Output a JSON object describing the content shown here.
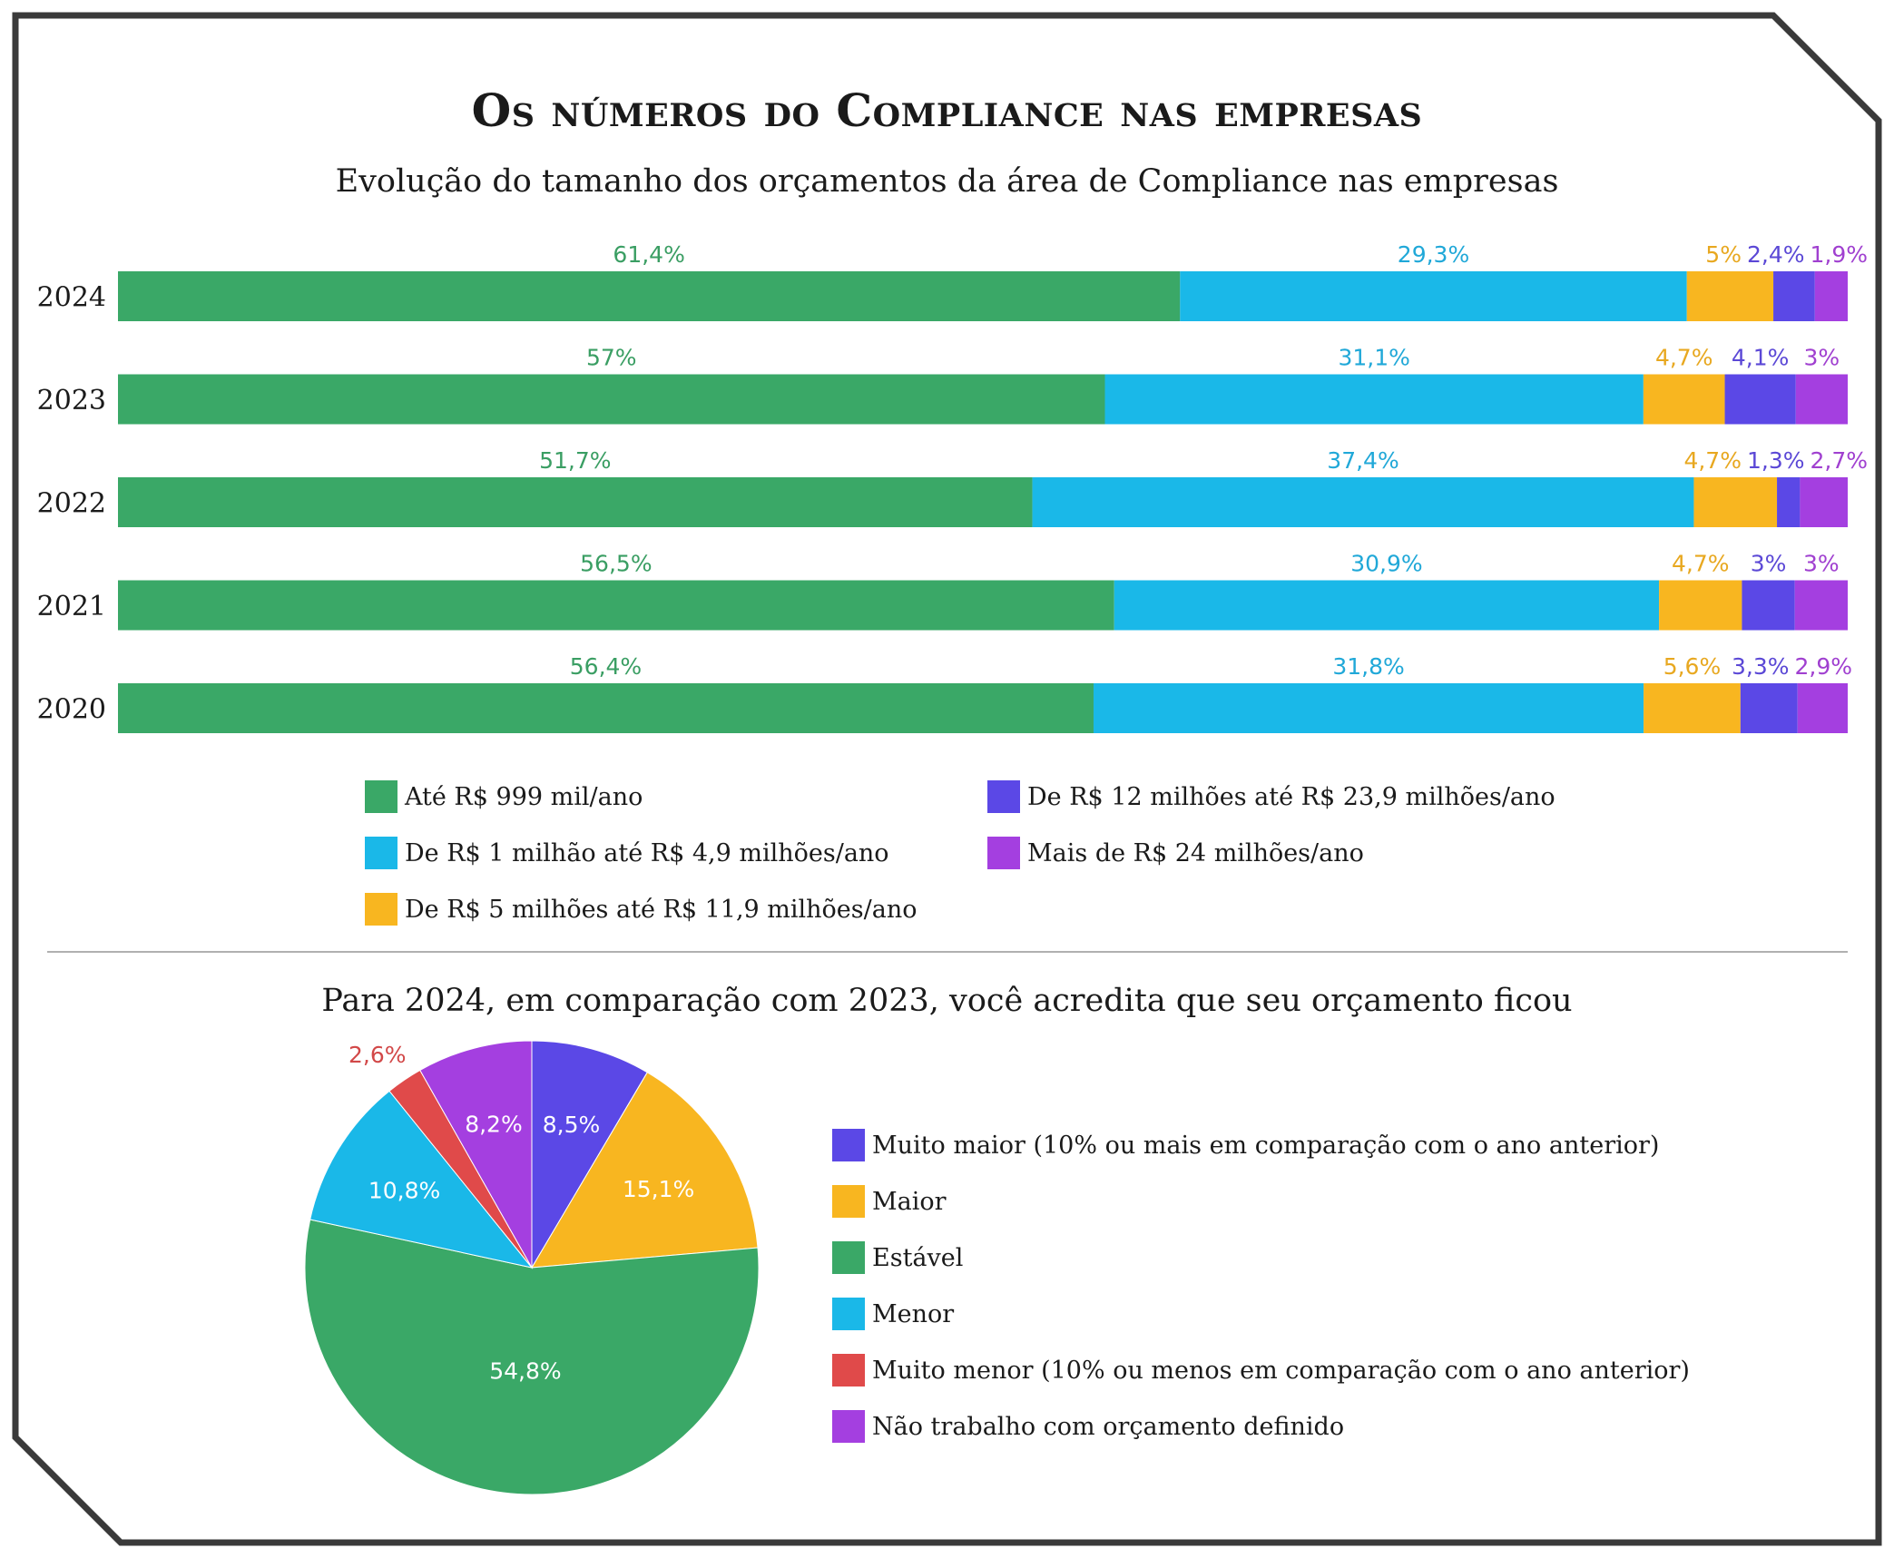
{
  "header": {
    "title": "Os números do Compliance nas empresas"
  },
  "colors": {
    "green": "#3aa867",
    "cyan": "#1ab8e8",
    "yellow": "#f8b620",
    "blue": "#5b48e6",
    "purple": "#a43fe0",
    "red": "#e04a4a",
    "label_green": "#3a9e63",
    "label_cyan": "#20a8d8",
    "label_yellow": "#e8a820",
    "label_blue": "#5b48d6",
    "label_purple": "#a040d0",
    "label_red": "#d24848"
  },
  "chart_data": [
    {
      "type": "bar",
      "orientation": "horizontal",
      "stacked": true,
      "title": "Evolução do tamanho dos orçamentos da área de Compliance nas empresas",
      "categories": [
        "2024",
        "2023",
        "2022",
        "2021",
        "2020"
      ],
      "series": [
        {
          "name": "Até R$ 999 mil/ano",
          "color": "#3aa867",
          "label_color": "#3a9e63",
          "values": [
            61.4,
            57,
            51.7,
            56.5,
            56.4
          ],
          "labels": [
            "61,4%",
            "57%",
            "51,7%",
            "56,5%",
            "56,4%"
          ]
        },
        {
          "name": "De R$ 1 milhão até R$ 4,9 milhões/ano",
          "color": "#1ab8e8",
          "label_color": "#20a8d8",
          "values": [
            29.3,
            31.1,
            37.4,
            30.9,
            31.8
          ],
          "labels": [
            "29,3%",
            "31,1%",
            "37,4%",
            "30,9%",
            "31,8%"
          ]
        },
        {
          "name": "De R$ 5 milhões até R$ 11,9 milhões/ano",
          "color": "#f8b620",
          "label_color": "#e8a820",
          "values": [
            5,
            4.7,
            4.7,
            4.7,
            5.6
          ],
          "labels": [
            "5%",
            "4,7%",
            "4,7%",
            "4,7%",
            "5,6%"
          ]
        },
        {
          "name": "De R$ 12 milhões até R$ 23,9 milhões/ano",
          "color": "#5b48e6",
          "label_color": "#5b48d6",
          "values": [
            2.4,
            4.1,
            1.3,
            3,
            3.3
          ],
          "labels": [
            "2,4%",
            "4,1%",
            "1,3%",
            "3%",
            "3,3%"
          ]
        },
        {
          "name": "Mais de R$ 24 milhões/ano",
          "color": "#a43fe0",
          "label_color": "#a040d0",
          "values": [
            1.9,
            3,
            2.7,
            3,
            2.9
          ],
          "labels": [
            "1,9%",
            "3%",
            "2,7%",
            "3%",
            "2,9%"
          ]
        }
      ],
      "legend_order": [
        0,
        3,
        1,
        4,
        2
      ]
    },
    {
      "type": "pie",
      "title": "Para 2024, em comparação com 2023, você acredita que seu orçamento ficou",
      "slices": [
        {
          "name": "Muito maior (10% ou mais em comparação com o ano anterior)",
          "value": 8.5,
          "label": "8,5%",
          "color": "#5b48e6"
        },
        {
          "name": "Maior",
          "value": 15.1,
          "label": "15,1%",
          "color": "#f8b620"
        },
        {
          "name": "Estável",
          "value": 54.8,
          "label": "54,8%",
          "color": "#3aa867"
        },
        {
          "name": "Menor",
          "value": 10.8,
          "label": "10,8%",
          "color": "#1ab8e8"
        },
        {
          "name": "Muito menor (10% ou menos em comparação com o ano anterior)",
          "value": 2.6,
          "label": "2,6%",
          "color": "#e04a4a"
        },
        {
          "name": "Não trabalho com orçamento definido",
          "value": 8.2,
          "label": "8,2%",
          "color": "#a43fe0"
        }
      ]
    }
  ]
}
